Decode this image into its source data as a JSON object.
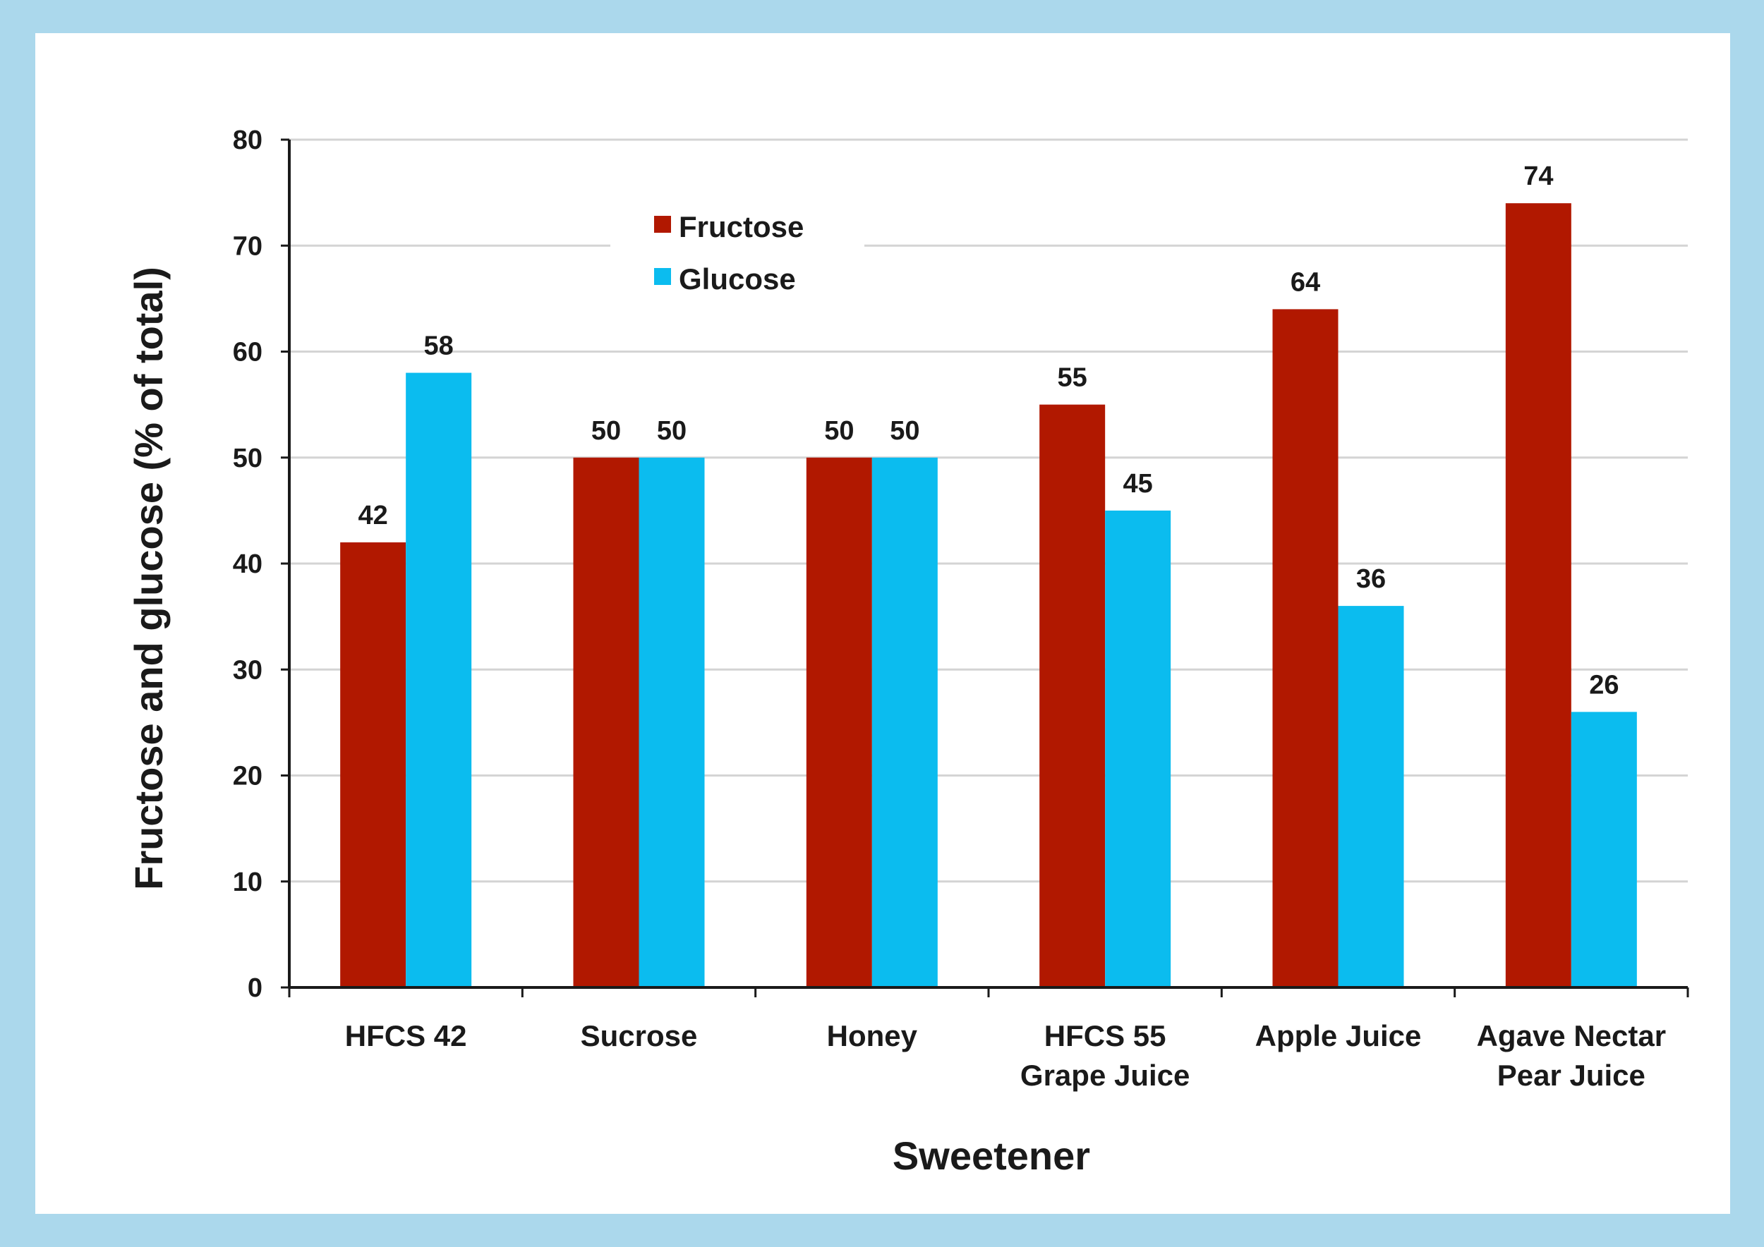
{
  "chart_data": {
    "type": "bar",
    "xlabel": "Sweetener",
    "ylabel": "Fructose and glucose (% of total)",
    "ylim": [
      0,
      80
    ],
    "yticks": [
      0,
      10,
      20,
      30,
      40,
      50,
      60,
      70,
      80
    ],
    "grid": true,
    "legend_position": "top-left",
    "categories": [
      [
        "HFCS 42"
      ],
      [
        "Sucrose"
      ],
      [
        "Honey"
      ],
      [
        "HFCS 55",
        "Grape Juice"
      ],
      [
        "Apple Juice"
      ],
      [
        "Agave Nectar",
        "Pear Juice"
      ]
    ],
    "series": [
      {
        "name": "Fructose",
        "color": "#b11800",
        "values": [
          42,
          50,
          50,
          55,
          64,
          74
        ]
      },
      {
        "name": "Glucose",
        "color": "#0bbcef",
        "values": [
          58,
          50,
          50,
          45,
          36,
          26
        ]
      }
    ]
  },
  "colors": {
    "frame": "#abd8ec",
    "panel": "#ffffff",
    "grid": "#d4d4d4",
    "axis": "#1a1a1a"
  }
}
